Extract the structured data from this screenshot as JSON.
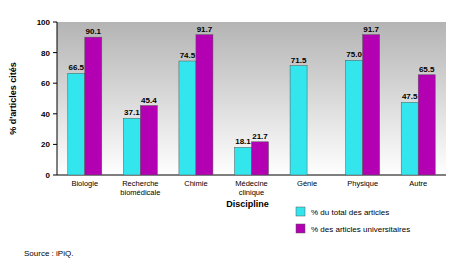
{
  "chart_data": {
    "type": "bar",
    "categories": [
      "Biologie",
      "Recherche biomédicale",
      "Chimie",
      "Médecine clinique",
      "Génie",
      "Physique",
      "Autre"
    ],
    "series": [
      {
        "name": "% du total des articles",
        "color": "#33e6ee",
        "values": [
          66.5,
          37.1,
          74.5,
          18.1,
          71.5,
          75.0,
          47.5
        ],
        "value_labels": [
          "66.5",
          "37.1",
          "74.5",
          "18.1",
          "71.5",
          "75.0",
          "47.5"
        ]
      },
      {
        "name": "% des articles universitaires",
        "color": "#b300b3",
        "values": [
          90.1,
          45.4,
          91.7,
          21.7,
          null,
          91.7,
          65.5
        ],
        "value_labels": [
          "90.1",
          "45.4",
          "91.7",
          "21.7",
          null,
          "91.7",
          "65.5"
        ]
      }
    ],
    "x_label": "Discipline",
    "y_label": "% d'articles cités",
    "annotation": "Source : iPiQ.",
    "ylim": [
      0,
      100
    ],
    "yticks": [
      0,
      20,
      40,
      60,
      80,
      100
    ],
    "grid": false,
    "legend": "bottom-right",
    "data_labels": true
  }
}
